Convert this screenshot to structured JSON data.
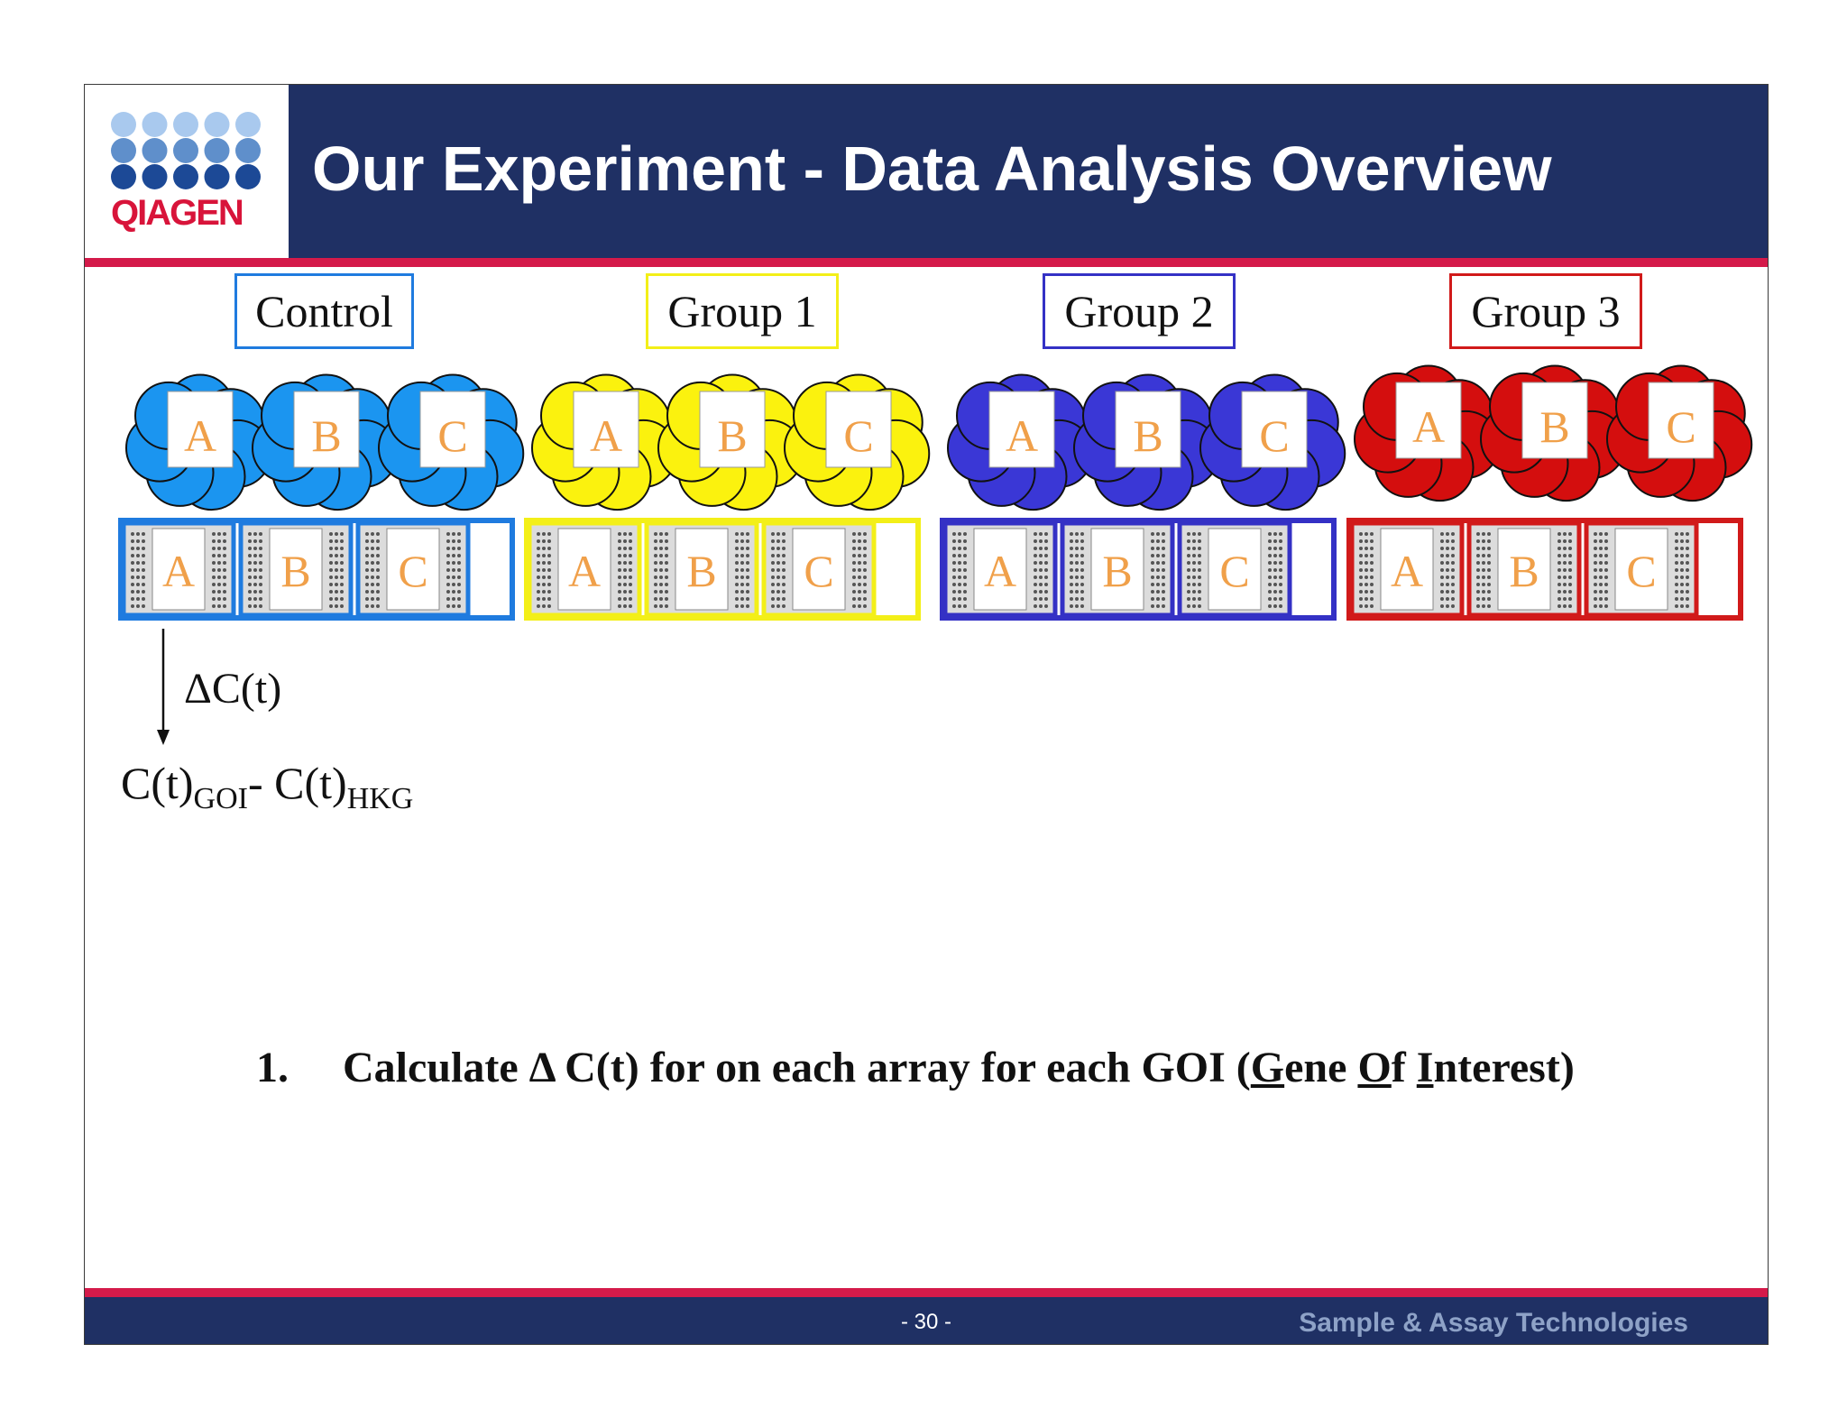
{
  "header": {
    "logo_text": "QIAGEN",
    "title": "Our Experiment - Data Analysis Overview"
  },
  "groups": [
    {
      "label": "Control",
      "color": "#1f7bdf",
      "fill": "#1b95f0",
      "samples": [
        "A",
        "B",
        "C"
      ],
      "arrays": [
        "A",
        "B",
        "C"
      ]
    },
    {
      "label": "Group 1",
      "color": "#f3ef18",
      "fill": "#fbf20e",
      "samples": [
        "A",
        "B",
        "C"
      ],
      "arrays": [
        "A",
        "B",
        "C"
      ]
    },
    {
      "label": "Group 2",
      "color": "#3431c5",
      "fill": "#3a37d6",
      "samples": [
        "A",
        "B",
        "C"
      ],
      "arrays": [
        "A",
        "B",
        "C"
      ]
    },
    {
      "label": "Group 3",
      "color": "#d11a1a",
      "fill": "#d40e0e",
      "samples": [
        "A",
        "B",
        "C"
      ],
      "arrays": [
        "A",
        "B",
        "C"
      ]
    }
  ],
  "letter_color": "#f0a04a",
  "annotation": {
    "delta_ct": "ΔC(t)",
    "formula_left": "C(t)",
    "formula_left_sub": "GOI",
    "formula_sep": "- C(t)",
    "formula_right_sub": "HKG"
  },
  "step": {
    "number": "1.",
    "text_before": "Calculate Δ C(t) for on each array for each GOI (",
    "g": "G",
    "ene": "ene ",
    "o": "O",
    "f": "f ",
    "i": "I",
    "nterest": "nterest)"
  },
  "footer": {
    "page_number": "- 30 -",
    "tagline": "Sample & Assay Technologies"
  }
}
